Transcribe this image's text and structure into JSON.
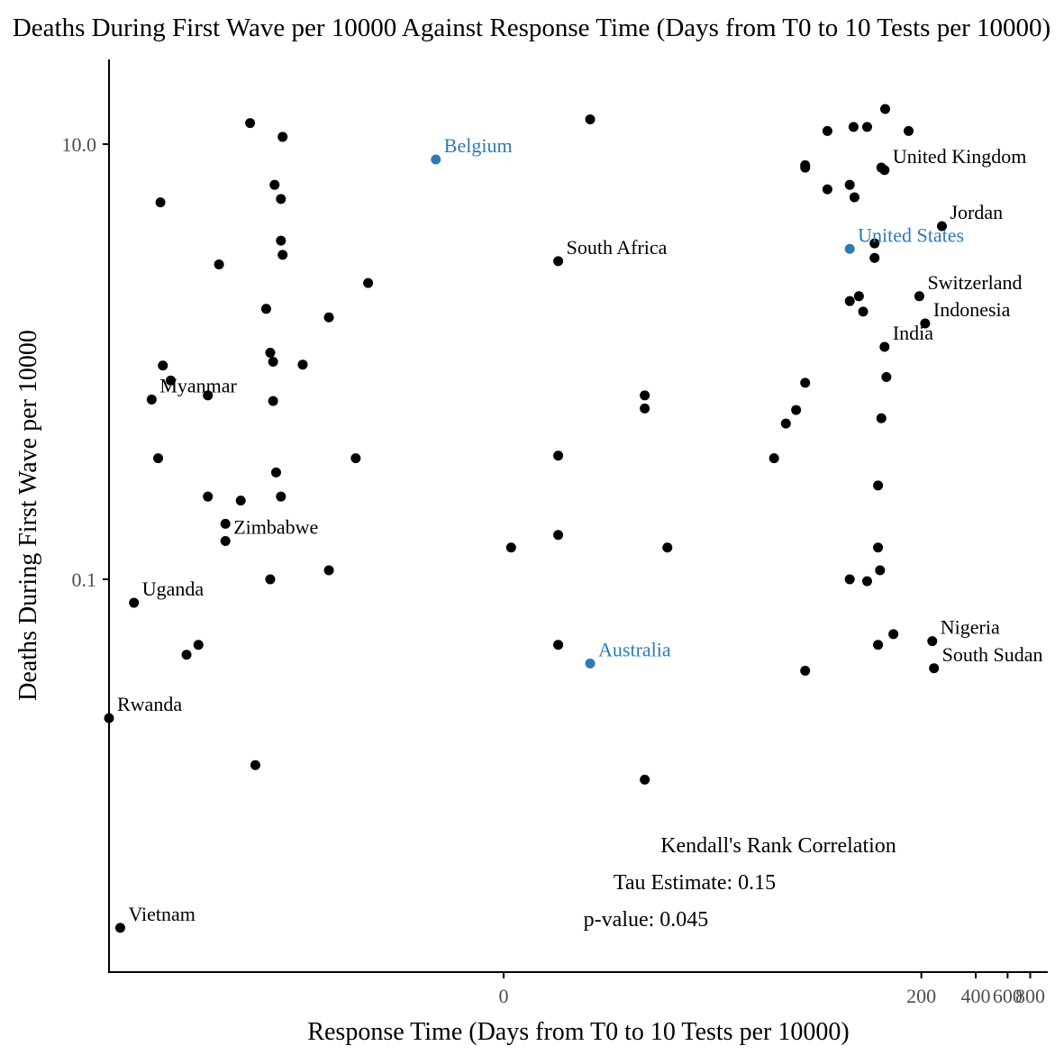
{
  "chart_data": {
    "type": "scatter",
    "title": "Deaths During First Wave per 10000 Against Response Time (Days from T0 to 10 Tests per 10000)",
    "xlabel": "Response Time (Days from T0 to 10 Tests per 10000)",
    "ylabel": "Deaths During First Wave per 10000",
    "x_scale": "pseudo-log",
    "y_scale": "log10",
    "xlim": [
      -1000,
      1000
    ],
    "ylim": [
      0.0018,
      20
    ],
    "x_ticks": [
      {
        "value": 0,
        "label": "0"
      },
      {
        "value": 200,
        "label": "200"
      },
      {
        "value": 400,
        "label": "400"
      },
      {
        "value": 600,
        "label": "600"
      },
      {
        "value": 800,
        "label": "800"
      }
    ],
    "y_ticks": [
      {
        "value": 10,
        "label": "10.0"
      },
      {
        "value": 0.1,
        "label": "0.1"
      }
    ],
    "colors": {
      "default": "#000000",
      "highlight": "#2e7bb4"
    },
    "points": [
      {
        "x": -500,
        "y": 0.0025,
        "label": "Vietnam",
        "highlight": false
      },
      {
        "x": -600,
        "y": 0.023,
        "label": "Rwanda",
        "highlight": false
      },
      {
        "x": -400,
        "y": 0.078,
        "label": "Uganda",
        "highlight": false
      },
      {
        "x": -90,
        "y": 0.15,
        "label": "Zimbabwe",
        "highlight": false
      },
      {
        "x": -300,
        "y": 0.67,
        "label": "Myanmar",
        "highlight": false
      },
      {
        "x": -2,
        "y": 8.5,
        "label": "Belgium",
        "highlight": true
      },
      {
        "x": 2,
        "y": 0.041,
        "label": "Australia",
        "highlight": true
      },
      {
        "x": 1,
        "y": 2.9,
        "label": "South Africa",
        "highlight": false
      },
      {
        "x": 80,
        "y": 3.3,
        "label": "United States",
        "highlight": true
      },
      {
        "x": 125,
        "y": 7.6,
        "label": "United Kingdom",
        "highlight": false
      },
      {
        "x": 260,
        "y": 4.2,
        "label": "Jordan",
        "highlight": false
      },
      {
        "x": 195,
        "y": 2.0,
        "label": "Switzerland",
        "highlight": false
      },
      {
        "x": 210,
        "y": 1.5,
        "label": "Indonesia",
        "highlight": false
      },
      {
        "x": 125,
        "y": 1.17,
        "label": "India",
        "highlight": false
      },
      {
        "x": 230,
        "y": 0.052,
        "label": "Nigeria",
        "highlight": false
      },
      {
        "x": 235,
        "y": 0.039,
        "label": "South Sudan",
        "highlight": false
      },
      {
        "x": -60,
        "y": 12.5,
        "label": "",
        "highlight": false
      },
      {
        "x": -35,
        "y": 10.8,
        "label": "",
        "highlight": false
      },
      {
        "x": -40,
        "y": 6.5,
        "label": "",
        "highlight": false
      },
      {
        "x": -36,
        "y": 5.6,
        "label": "",
        "highlight": false
      },
      {
        "x": -260,
        "y": 5.4,
        "label": "",
        "highlight": false
      },
      {
        "x": -36,
        "y": 3.6,
        "label": "",
        "highlight": false
      },
      {
        "x": -100,
        "y": 2.8,
        "label": "",
        "highlight": false
      },
      {
        "x": -35,
        "y": 3.1,
        "label": "",
        "highlight": false
      },
      {
        "x": -8,
        "y": 2.3,
        "label": "",
        "highlight": false
      },
      {
        "x": -46,
        "y": 1.75,
        "label": "",
        "highlight": false
      },
      {
        "x": -16,
        "y": 1.6,
        "label": "",
        "highlight": false
      },
      {
        "x": -43,
        "y": 1.1,
        "label": "",
        "highlight": false
      },
      {
        "x": -41,
        "y": 1.0,
        "label": "",
        "highlight": false
      },
      {
        "x": -25,
        "y": 0.97,
        "label": "",
        "highlight": false
      },
      {
        "x": -250,
        "y": 0.96,
        "label": "",
        "highlight": false
      },
      {
        "x": -220,
        "y": 0.82,
        "label": "",
        "highlight": false
      },
      {
        "x": -120,
        "y": 0.7,
        "label": "",
        "highlight": false
      },
      {
        "x": -41,
        "y": 0.66,
        "label": "",
        "highlight": false
      },
      {
        "x": -270,
        "y": 0.36,
        "label": "",
        "highlight": false
      },
      {
        "x": -10,
        "y": 0.36,
        "label": "",
        "highlight": false
      },
      {
        "x": -39,
        "y": 0.31,
        "label": "",
        "highlight": false
      },
      {
        "x": -120,
        "y": 0.24,
        "label": "",
        "highlight": false
      },
      {
        "x": -36,
        "y": 0.24,
        "label": "",
        "highlight": false
      },
      {
        "x": -70,
        "y": 0.23,
        "label": "",
        "highlight": false
      },
      {
        "x": -90,
        "y": 0.18,
        "label": "",
        "highlight": false
      },
      {
        "x": -16,
        "y": 0.11,
        "label": "",
        "highlight": false
      },
      {
        "x": -43,
        "y": 0.1,
        "label": "",
        "highlight": false
      },
      {
        "x": -140,
        "y": 0.05,
        "label": "",
        "highlight": false
      },
      {
        "x": -170,
        "y": 0.045,
        "label": "",
        "highlight": false
      },
      {
        "x": -55,
        "y": 0.014,
        "label": "",
        "highlight": false
      },
      {
        "x": 2,
        "y": 13,
        "label": "",
        "highlight": false
      },
      {
        "x": 1,
        "y": 0.37,
        "label": "",
        "highlight": false
      },
      {
        "x": 0.1,
        "y": 0.14,
        "label": "",
        "highlight": false
      },
      {
        "x": 1,
        "y": 0.16,
        "label": "",
        "highlight": false
      },
      {
        "x": 1,
        "y": 0.05,
        "label": "",
        "highlight": false
      },
      {
        "x": 5,
        "y": 0.7,
        "label": "",
        "highlight": false
      },
      {
        "x": 5,
        "y": 0.61,
        "label": "",
        "highlight": false
      },
      {
        "x": 7,
        "y": 0.14,
        "label": "",
        "highlight": false
      },
      {
        "x": 5,
        "y": 0.012,
        "label": "",
        "highlight": false
      },
      {
        "x": 60,
        "y": 11.5,
        "label": "",
        "highlight": false
      },
      {
        "x": 84,
        "y": 12,
        "label": "",
        "highlight": false
      },
      {
        "x": 100,
        "y": 12,
        "label": "",
        "highlight": false
      },
      {
        "x": 126,
        "y": 14.5,
        "label": "",
        "highlight": false
      },
      {
        "x": 170,
        "y": 11.5,
        "label": "",
        "highlight": false
      },
      {
        "x": 45,
        "y": 8.0,
        "label": "",
        "highlight": false
      },
      {
        "x": 45,
        "y": 7.8,
        "label": "",
        "highlight": false
      },
      {
        "x": 120,
        "y": 7.8,
        "label": "",
        "highlight": false
      },
      {
        "x": 60,
        "y": 6.2,
        "label": "",
        "highlight": false
      },
      {
        "x": 80,
        "y": 6.5,
        "label": "",
        "highlight": false
      },
      {
        "x": 85,
        "y": 5.7,
        "label": "",
        "highlight": false
      },
      {
        "x": 110,
        "y": 3.5,
        "label": "",
        "highlight": false
      },
      {
        "x": 110,
        "y": 3.0,
        "label": "",
        "highlight": false
      },
      {
        "x": 80,
        "y": 1.9,
        "label": "",
        "highlight": false
      },
      {
        "x": 90,
        "y": 2.0,
        "label": "",
        "highlight": false
      },
      {
        "x": 95,
        "y": 1.7,
        "label": "",
        "highlight": false
      },
      {
        "x": 128,
        "y": 0.85,
        "label": "",
        "highlight": false
      },
      {
        "x": 45,
        "y": 0.8,
        "label": "",
        "highlight": false
      },
      {
        "x": 40,
        "y": 0.6,
        "label": "",
        "highlight": false
      },
      {
        "x": 35,
        "y": 0.52,
        "label": "",
        "highlight": false
      },
      {
        "x": 30,
        "y": 0.36,
        "label": "",
        "highlight": false
      },
      {
        "x": 120,
        "y": 0.55,
        "label": "",
        "highlight": false
      },
      {
        "x": 115,
        "y": 0.27,
        "label": "",
        "highlight": false
      },
      {
        "x": 115,
        "y": 0.14,
        "label": "",
        "highlight": false
      },
      {
        "x": 118,
        "y": 0.11,
        "label": "",
        "highlight": false
      },
      {
        "x": 100,
        "y": 0.098,
        "label": "",
        "highlight": false
      },
      {
        "x": 80,
        "y": 0.1,
        "label": "",
        "highlight": false
      },
      {
        "x": 140,
        "y": 0.056,
        "label": "",
        "highlight": false
      },
      {
        "x": 115,
        "y": 0.05,
        "label": "",
        "highlight": false
      },
      {
        "x": 45,
        "y": 0.038,
        "label": "",
        "highlight": false
      }
    ],
    "annotation": {
      "heading": "Kendall's Rank Correlation",
      "tau": "Tau Estimate: 0.15",
      "pvalue": "p-value: 0.045"
    }
  }
}
